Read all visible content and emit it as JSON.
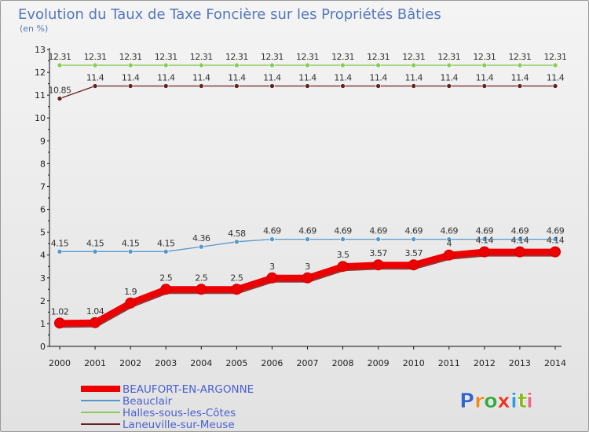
{
  "chart_data": {
    "type": "line",
    "title": "Evolution du Taux de Taxe Foncière sur les Propriétés Bâties",
    "subtitle": "(en %)",
    "xlabel": "",
    "ylabel": "",
    "ylim": [
      0,
      13
    ],
    "yticks": [
      "0",
      "1",
      "2",
      "3",
      "4",
      "5",
      "6",
      "7",
      "8",
      "9",
      "10",
      "11",
      "12",
      "13"
    ],
    "categories": [
      "2000",
      "2001",
      "2002",
      "2003",
      "2004",
      "2005",
      "2006",
      "2007",
      "2008",
      "2009",
      "2010",
      "2011",
      "2012",
      "2013",
      "2014"
    ],
    "legend_position": "bottom-left",
    "series": [
      {
        "name": "Halles-sous-les-Côtes",
        "color": "#88cc55",
        "values": [
          12.31,
          12.31,
          12.31,
          12.31,
          12.31,
          12.31,
          12.31,
          12.31,
          12.31,
          12.31,
          12.31,
          12.31,
          12.31,
          12.31,
          12.31
        ],
        "labels": [
          "12.31",
          "12.31",
          "12.31",
          "12.31",
          "12.31",
          "12.31",
          "12.31",
          "12.31",
          "12.31",
          "12.31",
          "12.31",
          "12.31",
          "12.31",
          "12.31",
          "12.31"
        ]
      },
      {
        "name": "Laneuville-sur-Meuse",
        "color": "#662222",
        "values": [
          10.85,
          11.4,
          11.4,
          11.4,
          11.4,
          11.4,
          11.4,
          11.4,
          11.4,
          11.4,
          11.4,
          11.4,
          11.4,
          11.4,
          11.4
        ],
        "labels": [
          "10.85",
          "11.4",
          "11.4",
          "11.4",
          "11.4",
          "11.4",
          "11.4",
          "11.4",
          "11.4",
          "11.4",
          "11.4",
          "11.4",
          "11.4",
          "11.4",
          "11.4"
        ]
      },
      {
        "name": "Beauclair",
        "color": "#5599cc",
        "values": [
          4.15,
          4.15,
          4.15,
          4.15,
          4.36,
          4.58,
          4.69,
          4.69,
          4.69,
          4.69,
          4.69,
          4.69,
          4.69,
          4.69,
          4.69
        ],
        "labels": [
          "4.15",
          "4.15",
          "4.15",
          "4.15",
          "4.36",
          "4.58",
          "4.69",
          "4.69",
          "4.69",
          "4.69",
          "4.69",
          "4.69",
          "4.69",
          "4.69",
          "4.69"
        ]
      },
      {
        "name": "BEAUFORT-EN-ARGONNE",
        "color": "#ee0000",
        "values": [
          1.02,
          1.04,
          1.9,
          2.5,
          2.5,
          2.5,
          3,
          3,
          3.5,
          3.57,
          3.57,
          4,
          4.14,
          4.14,
          4.14
        ],
        "labels": [
          "1.02",
          "1.04",
          "1.9",
          "2.5",
          "2.5",
          "2.5",
          "3",
          "3",
          "3.5",
          "3.57",
          "3.57",
          "4",
          "4.14",
          "4.14",
          "4.14"
        ]
      }
    ],
    "legend_order": [
      "BEAUFORT-EN-ARGONNE",
      "Beauclair",
      "Halles-sous-les-Côtes",
      "Laneuville-sur-Meuse"
    ]
  },
  "brand": {
    "letters": [
      "P",
      "r",
      "o",
      "x",
      "i",
      "t",
      "i"
    ],
    "colors": [
      "#3366cc",
      "#ee8822",
      "#33aa44",
      "#ee3322",
      "#3399dd",
      "#88bb22",
      "#ee6688"
    ]
  }
}
